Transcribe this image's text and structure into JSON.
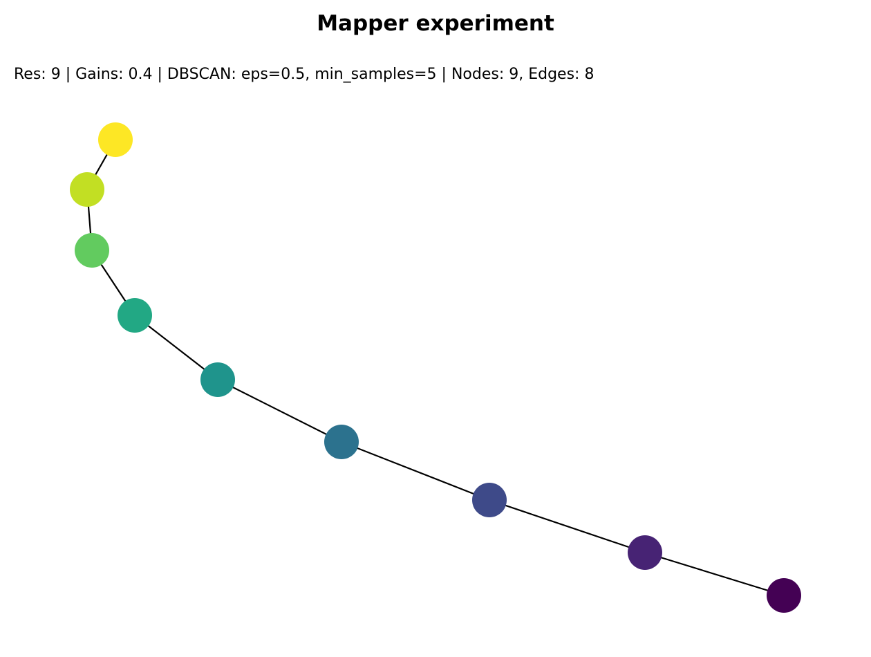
{
  "title": "Mapper experiment",
  "subtitle": "Res: 9 | Gains: 0.4 | DBSCAN: eps=0.5, min_samples=5 | Nodes: 9, Edges: 8",
  "graph": {
    "edge_color": "#000000",
    "nodes": [
      {
        "id": "n0",
        "color": "#fde725"
      },
      {
        "id": "n1",
        "color": "#c2df23"
      },
      {
        "id": "n2",
        "color": "#62cb5f"
      },
      {
        "id": "n3",
        "color": "#22a884"
      },
      {
        "id": "n4",
        "color": "#1f948c"
      },
      {
        "id": "n5",
        "color": "#2c728e"
      },
      {
        "id": "n6",
        "color": "#3e4a89"
      },
      {
        "id": "n7",
        "color": "#472374"
      },
      {
        "id": "n8",
        "color": "#440154"
      }
    ],
    "edges": [
      [
        "n0",
        "n1"
      ],
      [
        "n1",
        "n2"
      ],
      [
        "n2",
        "n3"
      ],
      [
        "n3",
        "n4"
      ],
      [
        "n4",
        "n5"
      ],
      [
        "n5",
        "n6"
      ],
      [
        "n6",
        "n7"
      ],
      [
        "n7",
        "n8"
      ]
    ]
  }
}
